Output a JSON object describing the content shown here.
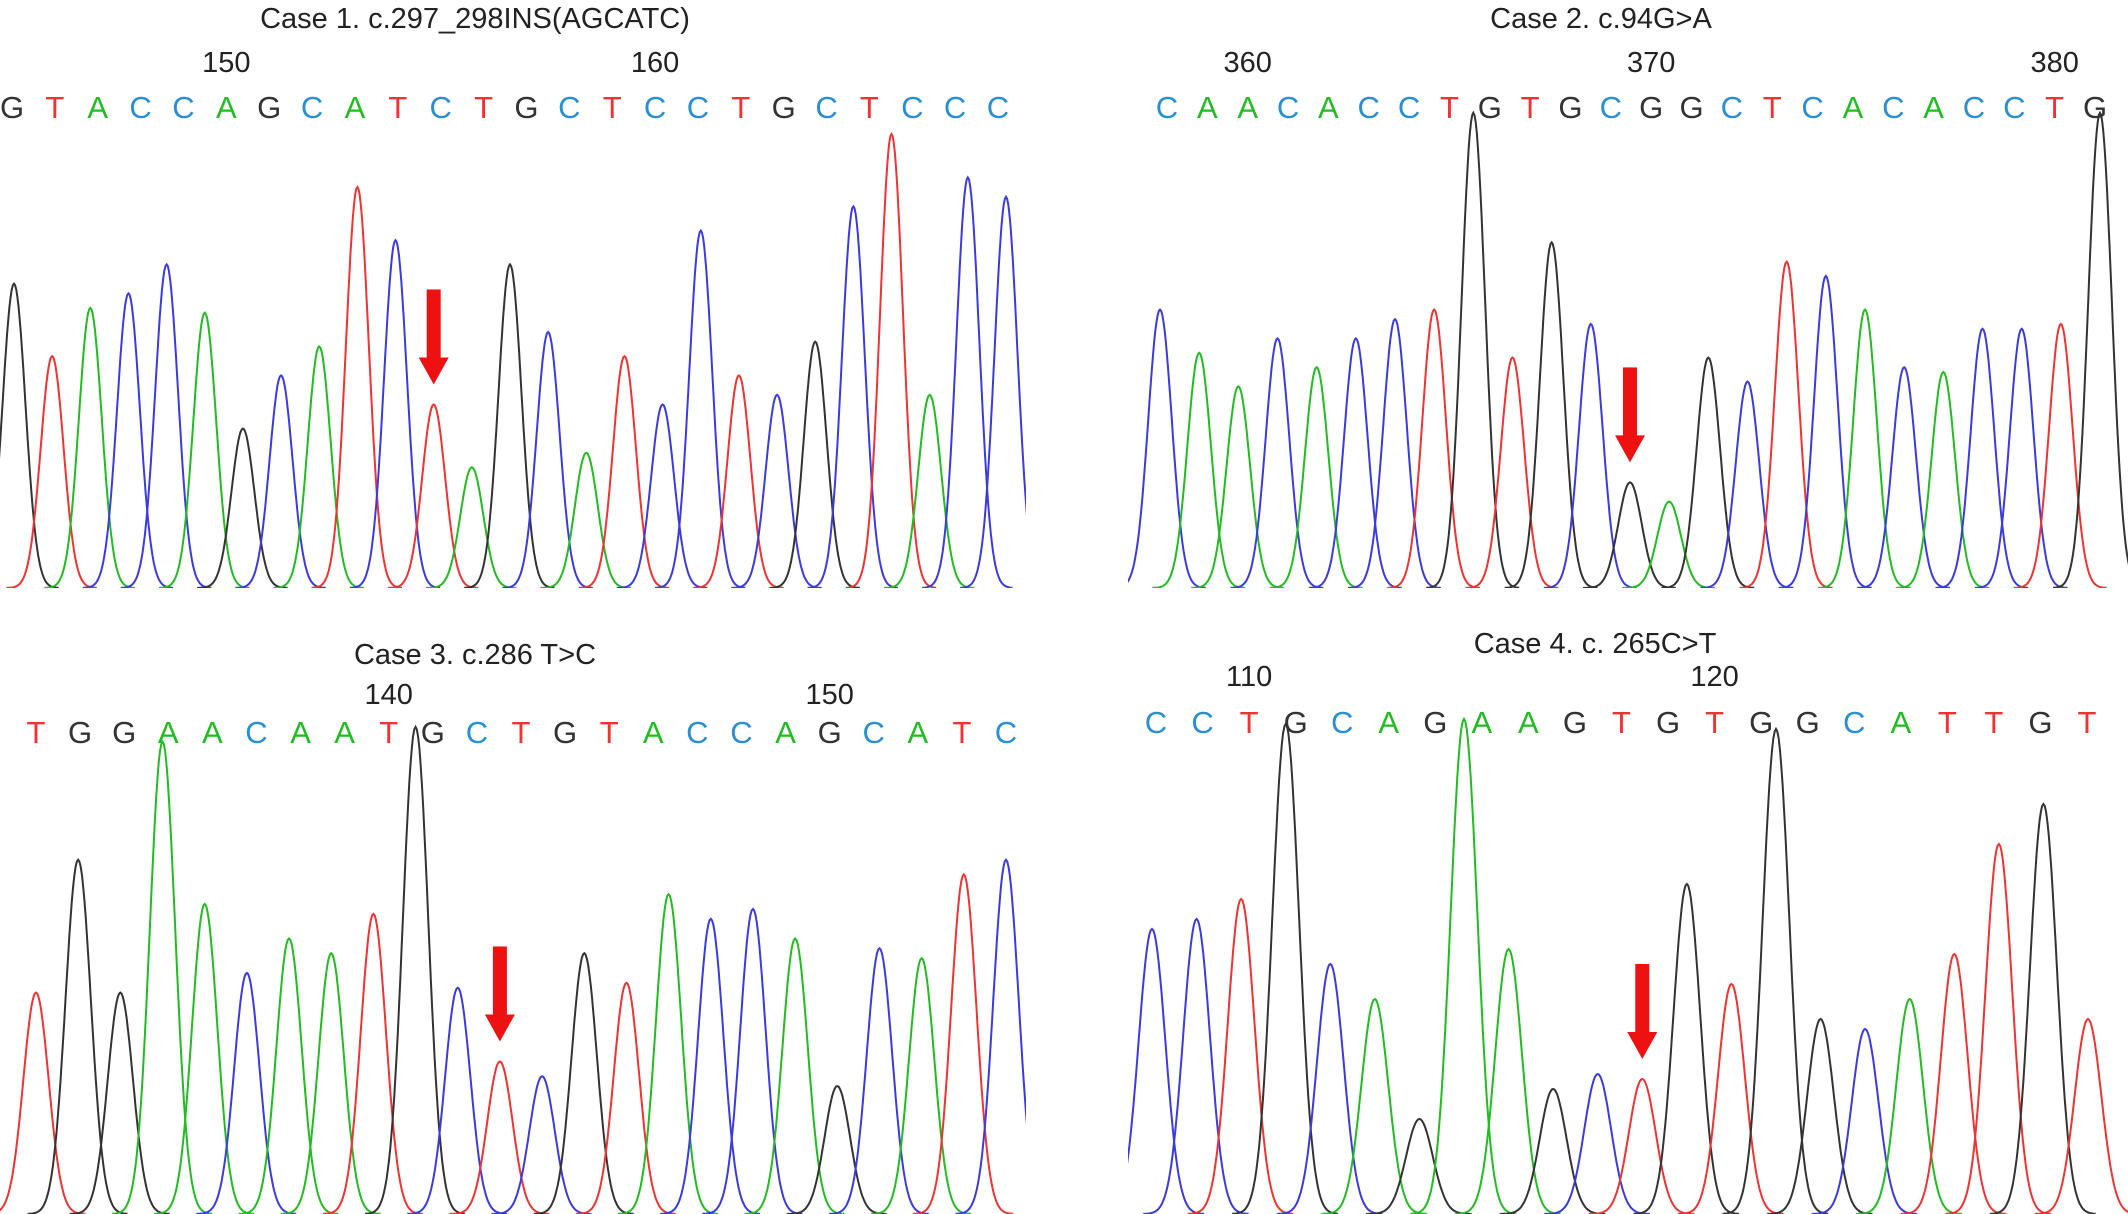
{
  "colors": {
    "A": "#22bb22",
    "C": "#3b3bdd",
    "G": "#333333",
    "T": "#ee3333",
    "arrow": "#ee1111",
    "base_C_text": "#2a8fd0"
  },
  "chart_data": [
    {
      "type": "line",
      "title": "Case 1. c.297_298INS(AGCATC)",
      "xlabel": "",
      "ylabel": "",
      "positions": [
        {
          "label": "150",
          "base_index": 5
        },
        {
          "label": "160",
          "base_index": 15
        }
      ],
      "sequence": [
        "G",
        "T",
        "A",
        "C",
        "C",
        "A",
        "G",
        "C",
        "A",
        "T",
        "C",
        "T",
        "G",
        "C",
        "T",
        "C",
        "C",
        "T",
        "G",
        "C",
        "T",
        "C",
        "C",
        "C"
      ],
      "peaks": [
        {
          "base": "G",
          "h": 0.63
        },
        {
          "base": "T",
          "h": 0.48
        },
        {
          "base": "A",
          "h": 0.58
        },
        {
          "base": "C",
          "h": 0.61
        },
        {
          "base": "C",
          "h": 0.67
        },
        {
          "base": "A",
          "h": 0.57
        },
        {
          "base": "G",
          "h": 0.33
        },
        {
          "base": "C",
          "h": 0.44
        },
        {
          "base": "A",
          "h": 0.5
        },
        {
          "base": "T",
          "h": 0.83
        },
        {
          "base": "C",
          "h": 0.72
        },
        {
          "base": "T",
          "h": 0.38
        },
        {
          "base": "A",
          "h": 0.25
        },
        {
          "base": "G",
          "h": 0.67
        },
        {
          "base": "C",
          "h": 0.53
        },
        {
          "base": "A",
          "h": 0.28
        },
        {
          "base": "T",
          "h": 0.48
        },
        {
          "base": "C",
          "h": 0.38
        },
        {
          "base": "C",
          "h": 0.74
        },
        {
          "base": "T",
          "h": 0.44
        },
        {
          "base": "C",
          "h": 0.4
        },
        {
          "base": "G",
          "h": 0.51
        },
        {
          "base": "C",
          "h": 0.79
        },
        {
          "base": "T",
          "h": 0.94
        },
        {
          "base": "A",
          "h": 0.4
        },
        {
          "base": "C",
          "h": 0.85
        },
        {
          "base": "C",
          "h": 0.81
        }
      ],
      "arrow_peak_index": 11
    },
    {
      "type": "line",
      "title": "Case 2. c.94G>A",
      "xlabel": "",
      "ylabel": "",
      "positions": [
        {
          "label": "360",
          "base_index": 2
        },
        {
          "label": "370",
          "base_index": 12
        },
        {
          "label": "380",
          "base_index": 22
        }
      ],
      "sequence": [
        "C",
        "A",
        "A",
        "C",
        "A",
        "C",
        "C",
        "T",
        "G",
        "T",
        "G",
        "C",
        "G",
        "G",
        "C",
        "T",
        "C",
        "A",
        "C",
        "A",
        "C",
        "C",
        "T",
        "G"
      ],
      "peaks": [
        {
          "base": "C",
          "h": 0.58
        },
        {
          "base": "A",
          "h": 0.49
        },
        {
          "base": "A",
          "h": 0.42
        },
        {
          "base": "C",
          "h": 0.52
        },
        {
          "base": "A",
          "h": 0.46
        },
        {
          "base": "C",
          "h": 0.52
        },
        {
          "base": "C",
          "h": 0.56
        },
        {
          "base": "T",
          "h": 0.58
        },
        {
          "base": "G",
          "h": 0.99
        },
        {
          "base": "T",
          "h": 0.48
        },
        {
          "base": "G",
          "h": 0.72
        },
        {
          "base": "C",
          "h": 0.55
        },
        {
          "base": "G",
          "h": 0.22
        },
        {
          "base": "A",
          "h": 0.18
        },
        {
          "base": "G",
          "h": 0.48
        },
        {
          "base": "C",
          "h": 0.43
        },
        {
          "base": "T",
          "h": 0.68
        },
        {
          "base": "C",
          "h": 0.65
        },
        {
          "base": "A",
          "h": 0.58
        },
        {
          "base": "C",
          "h": 0.46
        },
        {
          "base": "A",
          "h": 0.45
        },
        {
          "base": "C",
          "h": 0.54
        },
        {
          "base": "C",
          "h": 0.54
        },
        {
          "base": "T",
          "h": 0.55
        },
        {
          "base": "G",
          "h": 0.99
        }
      ],
      "arrow_peak_index": 12
    },
    {
      "type": "line",
      "title": "Case 3. c.286 T>C",
      "xlabel": "",
      "ylabel": "",
      "positions": [
        {
          "label": "140",
          "base_index": 8
        },
        {
          "label": "150",
          "base_index": 18
        }
      ],
      "sequence": [
        "T",
        "G",
        "G",
        "A",
        "A",
        "C",
        "A",
        "A",
        "T",
        "G",
        "C",
        "T",
        "G",
        "T",
        "A",
        "C",
        "C",
        "A",
        "G",
        "C",
        "A",
        "T",
        "C"
      ],
      "peaks": [
        {
          "base": "T",
          "h": 0.45
        },
        {
          "base": "G",
          "h": 0.72
        },
        {
          "base": "G",
          "h": 0.45
        },
        {
          "base": "A",
          "h": 0.96
        },
        {
          "base": "A",
          "h": 0.63
        },
        {
          "base": "C",
          "h": 0.49
        },
        {
          "base": "A",
          "h": 0.56
        },
        {
          "base": "A",
          "h": 0.53
        },
        {
          "base": "T",
          "h": 0.61
        },
        {
          "base": "G",
          "h": 0.99
        },
        {
          "base": "C",
          "h": 0.46
        },
        {
          "base": "T",
          "h": 0.31
        },
        {
          "base": "C",
          "h": 0.28
        },
        {
          "base": "G",
          "h": 0.53
        },
        {
          "base": "T",
          "h": 0.47
        },
        {
          "base": "A",
          "h": 0.65
        },
        {
          "base": "C",
          "h": 0.6
        },
        {
          "base": "C",
          "h": 0.62
        },
        {
          "base": "A",
          "h": 0.56
        },
        {
          "base": "G",
          "h": 0.26
        },
        {
          "base": "C",
          "h": 0.54
        },
        {
          "base": "A",
          "h": 0.52
        },
        {
          "base": "T",
          "h": 0.69
        },
        {
          "base": "C",
          "h": 0.72
        }
      ],
      "arrow_peak_index": 11
    },
    {
      "type": "line",
      "title": "Case 4. c. 265C>T",
      "xlabel": "",
      "ylabel": "",
      "positions": [
        {
          "label": "110",
          "base_index": 2
        },
        {
          "label": "120",
          "base_index": 12
        }
      ],
      "sequence": [
        "C",
        "C",
        "T",
        "G",
        "C",
        "A",
        "G",
        "A",
        "A",
        "G",
        "T",
        "G",
        "T",
        "G",
        "G",
        "C",
        "A",
        "T",
        "T",
        "G",
        "T"
      ],
      "peaks": [
        {
          "base": "C",
          "h": 0.57
        },
        {
          "base": "C",
          "h": 0.59
        },
        {
          "base": "T",
          "h": 0.63
        },
        {
          "base": "G",
          "h": 0.98
        },
        {
          "base": "C",
          "h": 0.5
        },
        {
          "base": "A",
          "h": 0.43
        },
        {
          "base": "G",
          "h": 0.19
        },
        {
          "base": "A",
          "h": 0.99
        },
        {
          "base": "A",
          "h": 0.53
        },
        {
          "base": "G",
          "h": 0.25
        },
        {
          "base": "C",
          "h": 0.28
        },
        {
          "base": "T",
          "h": 0.27
        },
        {
          "base": "G",
          "h": 0.66
        },
        {
          "base": "T",
          "h": 0.46
        },
        {
          "base": "G",
          "h": 0.97
        },
        {
          "base": "G",
          "h": 0.39
        },
        {
          "base": "C",
          "h": 0.37
        },
        {
          "base": "A",
          "h": 0.43
        },
        {
          "base": "T",
          "h": 0.52
        },
        {
          "base": "T",
          "h": 0.74
        },
        {
          "base": "G",
          "h": 0.82
        },
        {
          "base": "T",
          "h": 0.39
        }
      ],
      "arrow_peak_index": 11
    }
  ]
}
